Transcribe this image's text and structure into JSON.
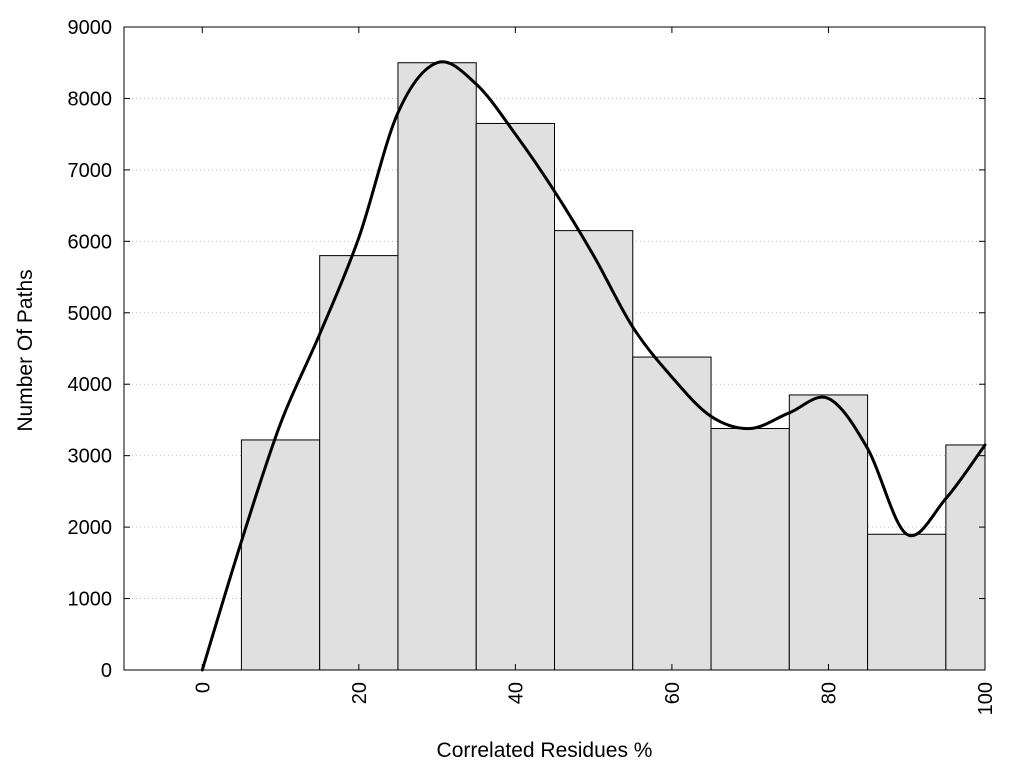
{
  "chart_data": {
    "type": "bar",
    "title": "",
    "xlabel": "Correlated Residues %",
    "ylabel": "Number Of Paths",
    "xlim": [
      -10,
      100
    ],
    "ylim": [
      0,
      9000
    ],
    "x_ticks": [
      0,
      20,
      40,
      60,
      80,
      100
    ],
    "y_ticks": [
      0,
      1000,
      2000,
      3000,
      4000,
      5000,
      6000,
      7000,
      8000,
      9000
    ],
    "bin_width": 10,
    "grid": "horizontal-dotted",
    "bar_color": "#e0e0e0",
    "bars": [
      {
        "x": 10,
        "value": 3220
      },
      {
        "x": 20,
        "value": 5800
      },
      {
        "x": 30,
        "value": 8500
      },
      {
        "x": 40,
        "value": 7650
      },
      {
        "x": 50,
        "value": 6150
      },
      {
        "x": 60,
        "value": 4380
      },
      {
        "x": 70,
        "value": 3380
      },
      {
        "x": 80,
        "value": 3850
      },
      {
        "x": 90,
        "value": 1900
      },
      {
        "x": 100,
        "value": 3150
      }
    ],
    "smooth_line": {
      "x": [
        0,
        5,
        10,
        15,
        20,
        25,
        30,
        35,
        40,
        45,
        50,
        55,
        60,
        65,
        70,
        75,
        80,
        85,
        90,
        95,
        100
      ],
      "y": [
        0,
        1800,
        3450,
        4700,
        6050,
        7800,
        8500,
        8200,
        7500,
        6700,
        5800,
        4800,
        4100,
        3550,
        3380,
        3600,
        3800,
        3100,
        1900,
        2400,
        3150
      ]
    }
  }
}
